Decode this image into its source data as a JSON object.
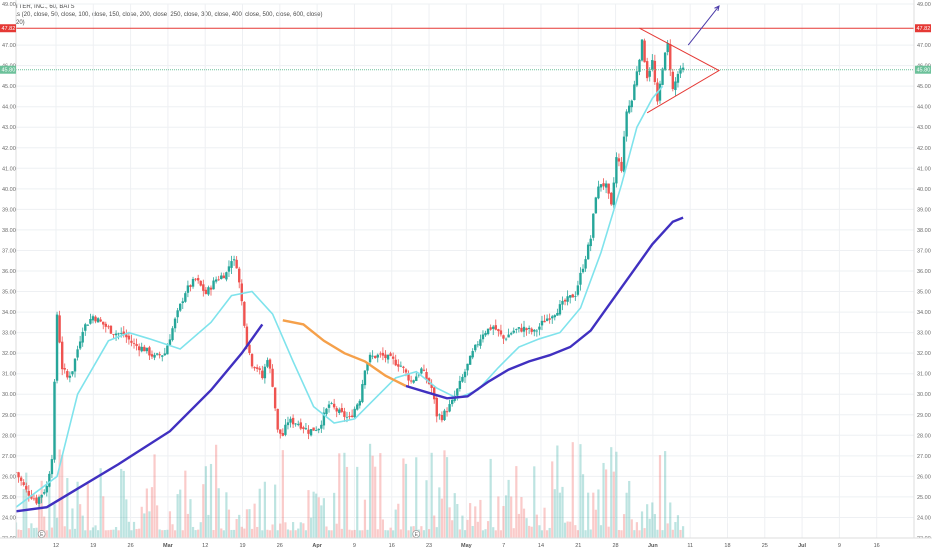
{
  "legend": {
    "title": "TWITTER, INC., 60, BATS",
    "sma": "SMAs (20, close, 50, close, 100, close, 150, close, 200, close, 250, close, 300, close, 400, close, 500, close, 600, close)",
    "vol": "Vol (20)"
  },
  "colors": {
    "up": "#26a69a",
    "down": "#ef5350",
    "sma_fast": "#7fe3ec",
    "sma_slow_a": "#4030c0",
    "sma_slow_b": "#f5a04a",
    "resistance": "#e53935",
    "support": "#6cc19a",
    "triangle": "#e53935",
    "arrow": "#4a3aa8"
  },
  "chart_data": {
    "type": "candlestick",
    "symbol": "TWITTER, INC.",
    "interval": "60",
    "exchange": "BATS",
    "ylim": [
      23,
      49
    ],
    "y_ticks": [
      "49.00",
      "47.00",
      "46.00",
      "45.00",
      "44.00",
      "43.00",
      "42.00",
      "41.00",
      "40.00",
      "39.00",
      "38.00",
      "37.00",
      "36.00",
      "35.00",
      "34.00",
      "33.00",
      "32.00",
      "31.00",
      "30.00",
      "29.00",
      "28.00",
      "27.00",
      "26.00",
      "25.00",
      "24.00",
      "23.00"
    ],
    "x_ticks": [
      "12",
      "19",
      "26",
      "Mar",
      "12",
      "19",
      "26",
      "Apr",
      "9",
      "16",
      "23",
      "May",
      "7",
      "14",
      "21",
      "28",
      "Jun",
      "11",
      "18",
      "25",
      "Jul",
      "9",
      "16"
    ],
    "resistance": {
      "value": 47.82,
      "label": "47.82"
    },
    "support": {
      "value": 45.8,
      "label": "45.80"
    },
    "price_path": [
      [
        0,
        26.2
      ],
      [
        2,
        25.3
      ],
      [
        4,
        24.8
      ],
      [
        6,
        25.5
      ],
      [
        7,
        27.0
      ],
      [
        8,
        33.9
      ],
      [
        9,
        31.3
      ],
      [
        10,
        30.8
      ],
      [
        11,
        31.2
      ],
      [
        13,
        33.2
      ],
      [
        15,
        33.8
      ],
      [
        17,
        33.4
      ],
      [
        19,
        33.0
      ],
      [
        21,
        32.9
      ],
      [
        23,
        32.4
      ],
      [
        25,
        32.2
      ],
      [
        27,
        31.8
      ],
      [
        29,
        32.0
      ],
      [
        31,
        33.6
      ],
      [
        33,
        35.0
      ],
      [
        35,
        35.6
      ],
      [
        37,
        34.9
      ],
      [
        39,
        35.6
      ],
      [
        41,
        35.9
      ],
      [
        42,
        36.6
      ],
      [
        43,
        36.3
      ],
      [
        44,
        34.5
      ],
      [
        45,
        32.5
      ],
      [
        46,
        31.5
      ],
      [
        47,
        31.3
      ],
      [
        48,
        30.8
      ],
      [
        49,
        31.8
      ],
      [
        50,
        30.5
      ],
      [
        51,
        28.2
      ],
      [
        52,
        28.0
      ],
      [
        53,
        28.7
      ],
      [
        55,
        28.6
      ],
      [
        57,
        28.2
      ],
      [
        59,
        28.4
      ],
      [
        61,
        29.5
      ],
      [
        63,
        29.1
      ],
      [
        65,
        28.8
      ],
      [
        67,
        29.8
      ],
      [
        68,
        31.3
      ],
      [
        69,
        31.8
      ],
      [
        71,
        31.9
      ],
      [
        73,
        31.7
      ],
      [
        75,
        31.4
      ],
      [
        77,
        30.6
      ],
      [
        79,
        31.2
      ],
      [
        81,
        30.3
      ],
      [
        82,
        29.0
      ],
      [
        83,
        28.9
      ],
      [
        85,
        29.6
      ],
      [
        87,
        30.8
      ],
      [
        89,
        32.0
      ],
      [
        91,
        33.0
      ],
      [
        93,
        33.3
      ],
      [
        95,
        32.7
      ],
      [
        97,
        33.1
      ],
      [
        99,
        33.2
      ],
      [
        101,
        33.0
      ],
      [
        103,
        33.6
      ],
      [
        105,
        34.0
      ],
      [
        107,
        34.5
      ],
      [
        109,
        34.9
      ],
      [
        111,
        36.7
      ],
      [
        112,
        37.6
      ],
      [
        113,
        39.7
      ],
      [
        114,
        40.3
      ],
      [
        115,
        40.1
      ],
      [
        116,
        39.1
      ],
      [
        117,
        41.5
      ],
      [
        118,
        41.0
      ],
      [
        119,
        43.8
      ],
      [
        120,
        44.3
      ],
      [
        121,
        45.8
      ],
      [
        122,
        47.1
      ],
      [
        123,
        45.5
      ],
      [
        124,
        46.2
      ],
      [
        125,
        44.1
      ],
      [
        126,
        46.0
      ],
      [
        127,
        47.0
      ],
      [
        128,
        44.8
      ],
      [
        129,
        45.6
      ],
      [
        130,
        45.8
      ]
    ],
    "sma_fast": [
      [
        0,
        24.5
      ],
      [
        8,
        26.0
      ],
      [
        12,
        30.0
      ],
      [
        18,
        32.6
      ],
      [
        22,
        33.0
      ],
      [
        26,
        32.7
      ],
      [
        32,
        32.2
      ],
      [
        38,
        33.5
      ],
      [
        42,
        34.8
      ],
      [
        46,
        35.0
      ],
      [
        50,
        33.9
      ],
      [
        54,
        31.6
      ],
      [
        58,
        29.4
      ],
      [
        62,
        28.6
      ],
      [
        66,
        28.8
      ],
      [
        70,
        29.8
      ],
      [
        74,
        30.8
      ],
      [
        78,
        31.1
      ],
      [
        82,
        30.3
      ],
      [
        86,
        29.8
      ],
      [
        90,
        30.2
      ],
      [
        94,
        31.3
      ],
      [
        98,
        32.3
      ],
      [
        102,
        32.7
      ],
      [
        106,
        33.0
      ],
      [
        110,
        34.2
      ],
      [
        114,
        36.9
      ],
      [
        118,
        40.2
      ],
      [
        121,
        43.0
      ],
      [
        124,
        44.4
      ],
      [
        126,
        45.0
      ]
    ],
    "sma_slow": [
      [
        0,
        24.3
      ],
      [
        6,
        24.5
      ],
      [
        12,
        25.4
      ],
      [
        20,
        26.6
      ],
      [
        30,
        28.2
      ],
      [
        38,
        30.2
      ],
      [
        44,
        32.0
      ],
      [
        48,
        33.4
      ],
      [
        52,
        33.6
      ],
      [
        56,
        33.4
      ],
      [
        60,
        32.6
      ],
      [
        64,
        32.0
      ],
      [
        68,
        31.6
      ],
      [
        72,
        30.9
      ],
      [
        76,
        30.4
      ],
      [
        80,
        30.1
      ],
      [
        84,
        29.8
      ],
      [
        88,
        29.9
      ],
      [
        92,
        30.6
      ],
      [
        96,
        31.2
      ],
      [
        100,
        31.6
      ],
      [
        104,
        31.9
      ],
      [
        108,
        32.3
      ],
      [
        112,
        33.1
      ],
      [
        116,
        34.5
      ],
      [
        120,
        35.9
      ],
      [
        124,
        37.3
      ],
      [
        128,
        38.4
      ],
      [
        130,
        38.6
      ]
    ],
    "sma_slow_mid_range": [
      50,
      76
    ],
    "triangle": {
      "apex_x": 137,
      "top": 47.82,
      "bottom": 43.7
    },
    "projection_arrow": {
      "from": [
        131,
        47.0
      ],
      "to": [
        137,
        48.9
      ]
    },
    "volume_max_ratio": 0.18,
    "events": [
      {
        "x": 5,
        "label": "E"
      },
      {
        "x": 78,
        "label": "E"
      }
    ]
  }
}
